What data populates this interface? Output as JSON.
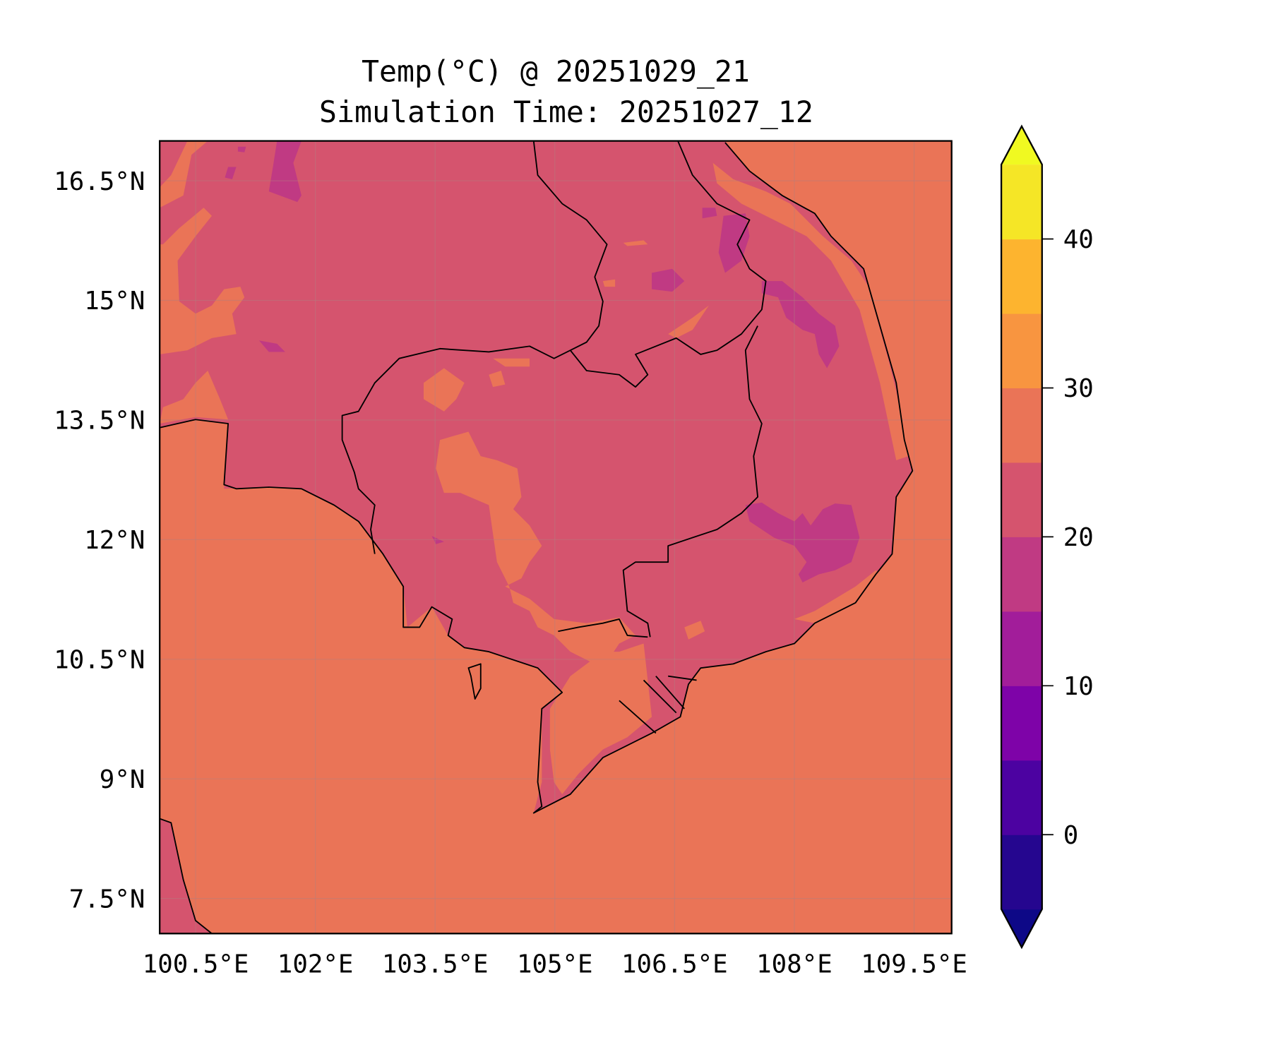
{
  "title": {
    "line1": "Temp(°C) @ 20251029_21",
    "line2": "Simulation Time: 20251027_12"
  },
  "map": {
    "lon_range": [
      100.05,
      109.97
    ],
    "lat_range": [
      7.06,
      17.0
    ],
    "x_ticks": [
      {
        "value": 100.5,
        "label": "100.5°E"
      },
      {
        "value": 102,
        "label": "102°E"
      },
      {
        "value": 103.5,
        "label": "103.5°E"
      },
      {
        "value": 105,
        "label": "105°E"
      },
      {
        "value": 106.5,
        "label": "106.5°E"
      },
      {
        "value": 108,
        "label": "108°E"
      },
      {
        "value": 109.5,
        "label": "109.5°E"
      }
    ],
    "y_ticks": [
      {
        "value": 16.5,
        "label": "16.5°N"
      },
      {
        "value": 15,
        "label": "15°N"
      },
      {
        "value": 13.5,
        "label": "13.5°N"
      },
      {
        "value": 12,
        "label": "12°N"
      },
      {
        "value": 10.5,
        "label": "10.5°N"
      },
      {
        "value": 9,
        "label": "9°N"
      },
      {
        "value": 7.5,
        "label": "7.5°N"
      }
    ],
    "colors": {
      "sea": "#ea7457",
      "land": "#d5546e",
      "cool": "#c03a83",
      "warm": "#ea7457"
    }
  },
  "colorbar": {
    "levels": [
      -5,
      0,
      5,
      10,
      15,
      20,
      25,
      30,
      35,
      40,
      45
    ],
    "colors": [
      "#25068f",
      "#4c02a1",
      "#7e03a8",
      "#a21d9a",
      "#c03a83",
      "#d5546e",
      "#ea7457",
      "#f89540",
      "#fdb42f",
      "#f5e626"
    ],
    "under_color": "#0d0887",
    "over_color": "#f0f921",
    "ticks": [
      {
        "value": 0,
        "label": "0"
      },
      {
        "value": 10,
        "label": "10"
      },
      {
        "value": 20,
        "label": "20"
      },
      {
        "value": 30,
        "label": "30"
      },
      {
        "value": 40,
        "label": "40"
      }
    ]
  }
}
